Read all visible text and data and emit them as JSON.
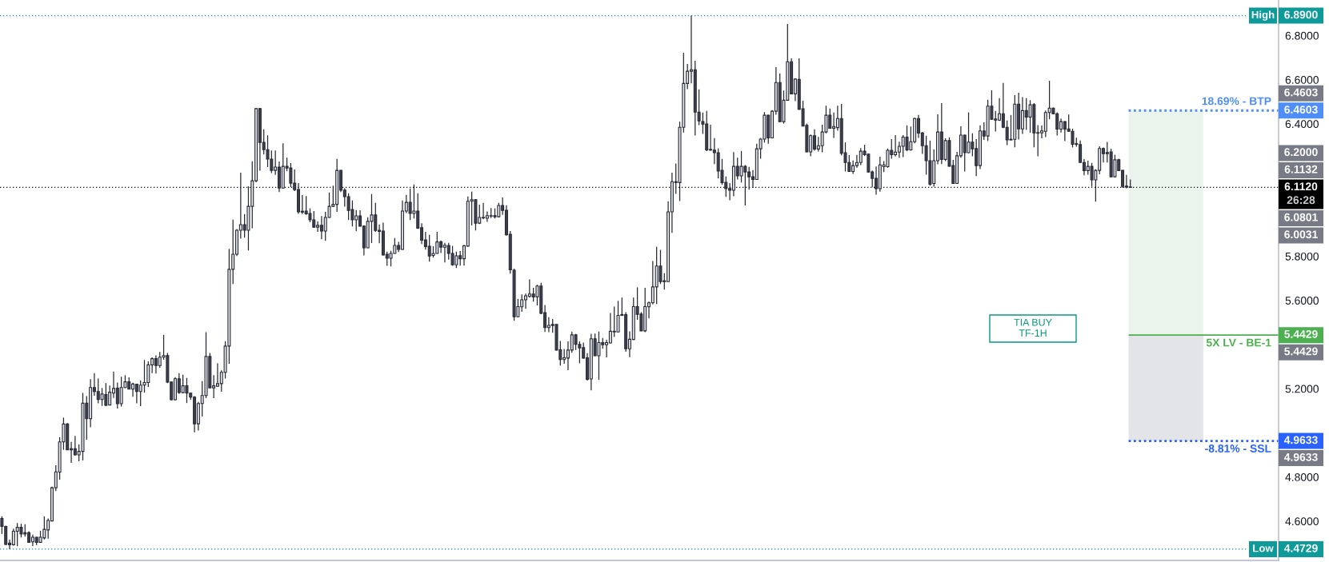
{
  "chart_data": {
    "type": "candlestick",
    "categories": [
      null,
      null,
      null,
      null,
      null,
      null,
      null,
      null,
      null,
      null,
      null,
      null,
      null,
      null,
      null,
      null,
      null,
      null,
      null,
      null,
      null,
      null,
      null,
      null,
      null,
      null,
      null,
      null,
      null,
      null,
      null,
      null,
      null,
      null,
      null,
      null,
      null,
      null,
      null,
      null,
      null,
      null,
      null,
      null,
      null,
      null,
      null,
      null,
      null,
      null,
      null,
      null,
      null,
      null,
      null,
      null,
      null,
      null,
      null,
      null,
      null,
      null,
      null,
      null,
      null,
      null,
      null,
      null,
      null,
      null,
      null,
      null,
      null,
      null,
      null,
      null,
      null,
      null,
      null,
      null,
      null,
      null,
      null,
      null,
      null,
      null,
      null,
      null,
      null,
      null,
      null,
      null,
      null,
      null,
      null,
      null,
      null,
      null,
      null,
      null,
      null,
      null,
      null,
      null,
      null,
      null,
      null,
      null,
      null,
      null,
      null,
      null,
      null,
      null,
      null,
      null,
      null,
      null,
      null,
      null,
      null,
      null,
      null,
      null,
      null,
      null,
      null,
      null,
      null,
      null,
      null,
      null,
      null,
      null,
      null,
      null,
      null,
      null,
      null,
      null,
      null,
      null,
      null,
      null,
      null,
      null,
      null,
      null,
      null,
      null,
      null,
      null,
      null,
      null,
      null,
      null,
      null,
      null,
      null,
      null,
      null,
      null,
      null,
      null,
      null,
      null,
      null,
      null,
      null,
      null,
      null,
      null,
      null,
      null,
      null,
      null,
      null,
      null,
      null,
      null,
      null,
      null,
      null,
      null,
      null,
      null,
      null,
      null,
      null,
      null,
      null,
      null,
      null,
      null,
      null,
      null,
      null,
      null,
      null,
      null,
      null,
      null,
      null,
      null,
      null,
      null,
      null,
      null,
      null,
      null,
      null,
      null,
      null,
      null,
      null,
      null,
      null,
      null,
      null,
      null,
      null,
      null,
      null,
      null,
      null,
      null,
      null,
      null,
      null,
      null,
      null,
      null,
      null,
      null,
      null,
      null,
      null,
      null,
      null,
      null,
      null,
      null,
      null,
      null,
      null,
      null,
      null,
      null,
      null,
      null,
      null,
      null,
      null,
      null,
      null,
      null,
      null,
      null,
      null,
      null,
      null,
      null,
      null,
      null,
      null,
      null,
      null,
      null,
      null,
      null,
      null,
      null,
      null,
      null,
      null,
      null,
      null,
      null,
      null,
      null,
      null,
      null,
      null,
      null,
      null,
      null,
      null,
      null,
      null,
      null,
      null,
      null,
      null,
      null,
      null,
      null,
      null,
      null,
      null,
      null,
      null,
      null,
      null,
      null,
      null,
      null,
      null,
      null,
      null,
      null,
      null,
      null,
      null,
      null,
      null,
      null,
      null,
      null,
      null,
      null,
      null,
      null,
      null,
      null,
      null,
      null,
      null,
      null,
      null,
      null,
      null,
      null
    ],
    "ohlc": [
      [
        4.612,
        4.622,
        4.542,
        4.576
      ],
      [
        4.576,
        4.58,
        4.492,
        4.495
      ],
      [
        4.501,
        4.516,
        4.4729,
        4.493
      ],
      [
        4.493,
        4.566,
        4.489,
        4.554
      ],
      [
        4.554,
        4.591,
        4.486,
        4.572
      ],
      [
        4.572,
        4.588,
        4.526,
        4.542
      ],
      [
        4.548,
        4.586,
        4.53,
        4.542
      ],
      [
        4.548,
        4.554,
        4.502,
        4.504
      ],
      [
        4.506,
        4.539,
        4.487,
        4.527
      ],
      [
        4.527,
        4.529,
        4.492,
        4.504
      ],
      [
        4.504,
        4.556,
        4.502,
        4.527
      ],
      [
        4.524,
        4.621,
        4.517,
        4.563
      ],
      [
        4.56,
        4.612,
        4.521,
        4.603
      ],
      [
        4.601,
        4.756,
        4.6,
        4.751
      ],
      [
        4.751,
        4.853,
        4.736,
        4.823
      ],
      [
        4.822,
        4.98,
        4.788,
        4.959
      ],
      [
        4.959,
        5.069,
        4.923,
        5.04
      ],
      [
        5.04,
        5.044,
        4.922,
        4.923
      ],
      [
        4.928,
        4.959,
        4.864,
        4.923
      ],
      [
        4.928,
        4.986,
        4.897,
        4.9
      ],
      [
        4.9,
        4.947,
        4.871,
        4.916
      ],
      [
        4.916,
        5.181,
        4.875,
        5.134
      ],
      [
        5.134,
        5.166,
        4.969,
        5.064
      ],
      [
        5.064,
        5.243,
        5.025,
        5.205
      ],
      [
        5.205,
        5.27,
        5.168,
        5.187
      ],
      [
        5.187,
        5.246,
        5.134,
        5.151
      ],
      [
        5.151,
        5.203,
        5.122,
        5.176
      ],
      [
        5.173,
        5.225,
        5.121,
        5.125
      ],
      [
        5.126,
        5.214,
        5.125,
        5.184
      ],
      [
        5.18,
        5.278,
        5.158,
        5.201
      ],
      [
        5.202,
        5.228,
        5.11,
        5.132
      ],
      [
        5.132,
        5.254,
        5.119,
        5.205
      ],
      [
        5.205,
        5.261,
        5.203,
        5.231
      ],
      [
        5.231,
        5.251,
        5.197,
        5.198
      ],
      [
        5.198,
        5.227,
        5.164,
        5.221
      ],
      [
        5.22,
        5.222,
        5.134,
        5.187
      ],
      [
        5.187,
        5.237,
        5.121,
        5.216
      ],
      [
        5.216,
        5.33,
        5.182,
        5.228
      ],
      [
        5.228,
        5.324,
        5.208,
        5.308
      ],
      [
        5.308,
        5.342,
        5.27,
        5.336
      ],
      [
        5.336,
        5.351,
        5.269,
        5.305
      ],
      [
        5.305,
        5.366,
        5.295,
        5.343
      ],
      [
        5.343,
        5.444,
        5.331,
        5.35
      ],
      [
        5.35,
        5.362,
        5.225,
        5.23
      ],
      [
        5.23,
        5.232,
        5.146,
        5.15
      ],
      [
        5.15,
        5.252,
        5.146,
        5.245
      ],
      [
        5.245,
        5.27,
        5.176,
        5.183
      ],
      [
        5.182,
        5.263,
        5.179,
        5.213
      ],
      [
        5.213,
        5.249,
        5.135,
        5.18
      ],
      [
        5.18,
        5.182,
        5.15,
        5.162
      ],
      [
        5.162,
        5.166,
        5.002,
        5.041
      ],
      [
        5.041,
        5.14,
        5.011,
        5.133
      ],
      [
        5.133,
        5.234,
        5.074,
        5.169
      ],
      [
        5.169,
        5.456,
        5.157,
        5.346
      ],
      [
        5.346,
        5.362,
        5.203,
        5.204
      ],
      [
        5.204,
        5.261,
        5.157,
        5.213
      ],
      [
        5.211,
        5.315,
        5.21,
        5.223
      ],
      [
        5.223,
        5.283,
        5.186,
        5.274
      ],
      [
        5.274,
        5.415,
        5.246,
        5.393
      ],
      [
        5.393,
        5.833,
        5.313,
        5.741
      ],
      [
        5.741,
        5.966,
        5.674,
        5.809
      ],
      [
        5.809,
        5.923,
        5.801,
        5.918
      ],
      [
        5.918,
        6.179,
        5.88,
        5.943
      ],
      [
        5.943,
        5.991,
        5.884,
        5.918
      ],
      [
        5.918,
        6.117,
        5.826,
        6.026
      ],
      [
        6.026,
        6.23,
        5.927,
        6.142
      ],
      [
        6.142,
        6.472,
        6.135,
        6.469
      ],
      [
        6.469,
        6.472,
        6.188,
        6.316
      ],
      [
        6.316,
        6.375,
        6.261,
        6.283
      ],
      [
        6.283,
        6.348,
        6.204,
        6.24
      ],
      [
        6.24,
        6.279,
        6.177,
        6.189
      ],
      [
        6.189,
        6.279,
        6.169,
        6.204
      ],
      [
        6.204,
        6.229,
        6.091,
        6.109
      ],
      [
        6.109,
        6.312,
        6.108,
        6.207
      ],
      [
        6.207,
        6.247,
        6.185,
        6.2
      ],
      [
        6.2,
        6.222,
        6.113,
        6.131
      ],
      [
        6.131,
        6.193,
        6.095,
        6.102
      ],
      [
        6.102,
        6.132,
        5.992,
        6.001
      ],
      [
        6.004,
        6.077,
        5.991,
        6.0
      ],
      [
        6.005,
        6.073,
        5.988,
        5.992
      ],
      [
        5.994,
        6.017,
        5.954,
        5.965
      ],
      [
        5.965,
        6.005,
        5.93,
        5.932
      ],
      [
        5.932,
        5.959,
        5.911,
        5.94
      ],
      [
        5.94,
        5.982,
        5.877,
        5.914
      ],
      [
        5.914,
        6.001,
        5.87,
        5.976
      ],
      [
        5.976,
        6.089,
        5.974,
        6.026
      ],
      [
        6.026,
        6.12,
        6.025,
        6.035
      ],
      [
        6.035,
        6.241,
        6.001,
        6.189
      ],
      [
        6.189,
        6.19,
        6.091,
        6.099
      ],
      [
        6.1,
        6.108,
        6.025,
        6.07
      ],
      [
        6.07,
        6.085,
        5.964,
        6.008
      ],
      [
        6.012,
        6.053,
        5.935,
        5.965
      ],
      [
        5.965,
        6.009,
        5.913,
        5.983
      ],
      [
        5.983,
        6.008,
        5.935,
        5.936
      ],
      [
        5.937,
        5.94,
        5.804,
        5.838
      ],
      [
        5.838,
        5.977,
        5.837,
        5.958
      ],
      [
        5.958,
        6.082,
        5.86,
        5.987
      ],
      [
        5.987,
        6.042,
        5.911,
        5.917
      ],
      [
        5.918,
        5.944,
        5.859,
        5.913
      ],
      [
        5.914,
        5.952,
        5.804,
        5.806
      ],
      [
        5.809,
        5.821,
        5.757,
        5.791
      ],
      [
        5.791,
        5.825,
        5.754,
        5.813
      ],
      [
        5.813,
        5.883,
        5.812,
        5.849
      ],
      [
        5.849,
        5.865,
        5.819,
        5.831
      ],
      [
        5.831,
        6.053,
        5.829,
        6.005
      ],
      [
        6.005,
        6.078,
        5.996,
        6.044
      ],
      [
        6.044,
        6.107,
        5.964,
        5.994
      ],
      [
        5.994,
        6.125,
        5.971,
        6.005
      ],
      [
        6.005,
        6.085,
        5.924,
        5.927
      ],
      [
        5.929,
        5.95,
        5.855,
        5.873
      ],
      [
        5.874,
        5.911,
        5.83,
        5.844
      ],
      [
        5.845,
        5.897,
        5.776,
        5.801
      ],
      [
        5.804,
        5.845,
        5.794,
        5.813
      ],
      [
        5.813,
        5.911,
        5.812,
        5.865
      ],
      [
        5.865,
        5.872,
        5.815,
        5.841
      ],
      [
        5.841,
        5.861,
        5.772,
        5.85
      ],
      [
        5.849,
        5.861,
        5.785,
        5.813
      ],
      [
        5.813,
        5.847,
        5.757,
        5.761
      ],
      [
        5.761,
        5.821,
        5.747,
        5.802
      ],
      [
        5.803,
        5.824,
        5.758,
        5.789
      ],
      [
        5.789,
        5.852,
        5.758,
        5.847
      ],
      [
        5.846,
        6.071,
        5.844,
        6.049
      ],
      [
        6.049,
        6.093,
        5.94,
        6.056
      ],
      [
        6.056,
        6.059,
        5.917,
        5.95
      ],
      [
        5.95,
        6.034,
        5.946,
        5.976
      ],
      [
        5.974,
        6.042,
        5.968,
        5.976
      ],
      [
        5.972,
        6.003,
        5.956,
        5.984
      ],
      [
        5.982,
        6.018,
        5.973,
        5.984
      ],
      [
        5.984,
        6.017,
        5.971,
        5.979
      ],
      [
        5.979,
        6.042,
        5.976,
        6.03
      ],
      [
        6.03,
        6.066,
        5.988,
        6.008
      ],
      [
        6.008,
        6.031,
        5.893,
        5.897
      ],
      [
        5.9,
        5.914,
        5.721,
        5.739
      ],
      [
        5.737,
        5.744,
        5.508,
        5.526
      ],
      [
        5.526,
        5.607,
        5.524,
        5.572
      ],
      [
        5.571,
        5.627,
        5.548,
        5.603
      ],
      [
        5.603,
        5.631,
        5.562,
        5.621
      ],
      [
        5.618,
        5.695,
        5.613,
        5.629
      ],
      [
        5.629,
        5.657,
        5.595,
        5.616
      ],
      [
        5.616,
        5.671,
        5.577,
        5.665
      ],
      [
        5.665,
        5.68,
        5.538,
        5.541
      ],
      [
        5.545,
        5.579,
        5.457,
        5.477
      ],
      [
        5.477,
        5.524,
        5.456,
        5.487
      ],
      [
        5.491,
        5.516,
        5.453,
        5.486
      ],
      [
        5.491,
        5.492,
        5.373,
        5.375
      ],
      [
        5.376,
        5.416,
        5.305,
        5.332
      ],
      [
        5.332,
        5.38,
        5.313,
        5.34
      ],
      [
        5.339,
        5.414,
        5.284,
        5.375
      ],
      [
        5.375,
        5.459,
        5.363,
        5.444
      ],
      [
        5.444,
        5.448,
        5.375,
        5.401
      ],
      [
        5.401,
        5.415,
        5.315,
        5.385
      ],
      [
        5.386,
        5.409,
        5.336,
        5.339
      ],
      [
        5.34,
        5.361,
        5.237,
        5.243
      ],
      [
        5.244,
        5.449,
        5.193,
        5.426
      ],
      [
        5.426,
        5.45,
        5.348,
        5.349
      ],
      [
        5.349,
        5.459,
        5.24,
        5.409
      ],
      [
        5.409,
        5.43,
        5.381,
        5.399
      ],
      [
        5.399,
        5.422,
        5.342,
        5.409
      ],
      [
        5.407,
        5.543,
        5.405,
        5.46
      ],
      [
        5.457,
        5.572,
        5.434,
        5.46
      ],
      [
        5.457,
        5.598,
        5.456,
        5.532
      ],
      [
        5.532,
        5.613,
        5.53,
        5.536
      ],
      [
        5.536,
        5.547,
        5.367,
        5.381
      ],
      [
        5.381,
        5.46,
        5.343,
        5.424
      ],
      [
        5.423,
        5.613,
        5.421,
        5.572
      ],
      [
        5.572,
        5.659,
        5.512,
        5.537
      ],
      [
        5.538,
        5.547,
        5.461,
        5.462
      ],
      [
        5.462,
        5.657,
        5.456,
        5.572
      ],
      [
        5.571,
        5.595,
        5.519,
        5.589
      ],
      [
        5.589,
        5.778,
        5.582,
        5.661
      ],
      [
        5.661,
        5.843,
        5.584,
        5.756
      ],
      [
        5.756,
        5.829,
        5.674,
        5.685
      ],
      [
        5.689,
        5.723,
        5.649,
        5.685
      ],
      [
        5.685,
        6.049,
        5.685,
        6.001
      ],
      [
        6.001,
        6.179,
        5.906,
        6.138
      ],
      [
        6.138,
        6.22,
        6.083,
        6.134
      ],
      [
        6.134,
        6.41,
        6.05,
        6.384
      ],
      [
        6.384,
        6.722,
        6.361,
        6.583
      ],
      [
        6.583,
        6.671,
        6.557,
        6.638
      ],
      [
        6.638,
        6.89,
        6.583,
        6.645
      ],
      [
        6.645,
        6.686,
        6.347,
        6.453
      ],
      [
        6.453,
        6.556,
        6.394,
        6.413
      ],
      [
        6.41,
        6.451,
        6.354,
        6.399
      ],
      [
        6.399,
        6.458,
        6.276,
        6.282
      ],
      [
        6.284,
        6.396,
        6.278,
        6.281
      ],
      [
        6.281,
        6.335,
        6.218,
        6.269
      ],
      [
        6.269,
        6.288,
        6.152,
        6.186
      ],
      [
        6.189,
        6.241,
        6.124,
        6.134
      ],
      [
        6.135,
        6.161,
        6.069,
        6.106
      ],
      [
        6.107,
        6.132,
        6.054,
        6.099
      ],
      [
        6.099,
        6.272,
        6.072,
        6.207
      ],
      [
        6.207,
        6.247,
        6.148,
        6.164
      ],
      [
        6.164,
        6.277,
        6.134,
        6.207
      ],
      [
        6.207,
        6.213,
        6.03,
        6.182
      ],
      [
        6.182,
        6.205,
        6.102,
        6.16
      ],
      [
        6.16,
        6.19,
        6.11,
        6.148
      ],
      [
        6.148,
        6.31,
        6.146,
        6.287
      ],
      [
        6.287,
        6.336,
        6.242,
        6.331
      ],
      [
        6.331,
        6.453,
        6.315,
        6.439
      ],
      [
        6.439,
        6.44,
        6.31,
        6.336
      ],
      [
        6.336,
        6.462,
        6.335,
        6.457
      ],
      [
        6.457,
        6.657,
        6.441,
        6.587
      ],
      [
        6.587,
        6.628,
        6.409,
        6.41
      ],
      [
        6.41,
        6.551,
        6.401,
        6.507
      ],
      [
        6.507,
        6.852,
        6.505,
        6.681
      ],
      [
        6.681,
        6.697,
        6.535,
        6.536
      ],
      [
        6.536,
        6.606,
        6.503,
        6.603
      ],
      [
        6.601,
        6.697,
        6.463,
        6.466
      ],
      [
        6.468,
        6.505,
        6.389,
        6.39
      ],
      [
        6.393,
        6.401,
        6.271,
        6.273
      ],
      [
        6.273,
        6.352,
        6.253,
        6.346
      ],
      [
        6.346,
        6.375,
        6.278,
        6.286
      ],
      [
        6.286,
        6.341,
        6.275,
        6.301
      ],
      [
        6.301,
        6.396,
        6.271,
        6.363
      ],
      [
        6.363,
        6.482,
        6.357,
        6.439
      ],
      [
        6.439,
        6.469,
        6.378,
        6.38
      ],
      [
        6.38,
        6.451,
        6.336,
        6.388
      ],
      [
        6.383,
        6.482,
        6.369,
        6.424
      ],
      [
        6.424,
        6.49,
        6.257,
        6.267
      ],
      [
        6.269,
        6.316,
        6.184,
        6.225
      ],
      [
        6.225,
        6.258,
        6.183,
        6.184
      ],
      [
        6.184,
        6.234,
        6.173,
        6.211
      ],
      [
        6.211,
        6.259,
        6.2,
        6.225
      ],
      [
        6.225,
        6.29,
        6.213,
        6.276
      ],
      [
        6.276,
        6.305,
        6.254,
        6.26
      ],
      [
        6.263,
        6.266,
        6.179,
        6.182
      ],
      [
        6.182,
        6.189,
        6.113,
        6.153
      ],
      [
        6.153,
        6.207,
        6.079,
        6.106
      ],
      [
        6.106,
        6.251,
        6.093,
        6.214
      ],
      [
        6.206,
        6.231,
        6.181,
        6.214
      ],
      [
        6.206,
        6.288,
        6.201,
        6.28
      ],
      [
        6.28,
        6.331,
        6.242,
        6.26
      ],
      [
        6.26,
        6.349,
        6.252,
        6.272
      ],
      [
        6.272,
        6.319,
        6.246,
        6.298
      ],
      [
        6.298,
        6.349,
        6.249,
        6.34
      ],
      [
        6.34,
        6.393,
        6.276,
        6.282
      ],
      [
        6.282,
        6.388,
        6.278,
        6.319
      ],
      [
        6.319,
        6.428,
        6.312,
        6.424
      ],
      [
        6.424,
        6.44,
        6.336,
        6.358
      ],
      [
        6.359,
        6.363,
        6.264,
        6.301
      ],
      [
        6.301,
        6.346,
        6.17,
        6.233
      ],
      [
        6.233,
        6.324,
        6.119,
        6.126
      ],
      [
        6.13,
        6.284,
        6.115,
        6.233
      ],
      [
        6.233,
        6.443,
        6.217,
        6.363
      ],
      [
        6.363,
        6.494,
        6.218,
        6.239
      ],
      [
        6.239,
        6.334,
        6.231,
        6.324
      ],
      [
        6.324,
        6.339,
        6.206,
        6.208
      ],
      [
        6.211,
        6.237,
        6.128,
        6.13
      ],
      [
        6.13,
        6.273,
        6.128,
        6.255
      ],
      [
        6.255,
        6.389,
        6.247,
        6.349
      ],
      [
        6.349,
        6.351,
        6.184,
        6.269
      ],
      [
        6.269,
        6.452,
        6.267,
        6.317
      ],
      [
        6.317,
        6.357,
        6.253,
        6.287
      ],
      [
        6.288,
        6.331,
        6.163,
        6.211
      ],
      [
        6.211,
        6.393,
        6.195,
        6.368
      ],
      [
        6.368,
        6.407,
        6.327,
        6.345
      ],
      [
        6.345,
        6.509,
        6.322,
        6.48
      ],
      [
        6.48,
        6.552,
        6.418,
        6.421
      ],
      [
        6.422,
        6.458,
        6.365,
        6.417
      ],
      [
        6.417,
        6.516,
        6.413,
        6.446
      ],
      [
        6.446,
        6.585,
        6.381,
        6.384
      ],
      [
        6.384,
        6.415,
        6.304,
        6.327
      ],
      [
        6.33,
        6.44,
        6.325,
        6.327
      ],
      [
        6.33,
        6.53,
        6.294,
        6.489
      ],
      [
        6.489,
        6.541,
        6.329,
        6.377
      ],
      [
        6.377,
        6.521,
        6.354,
        6.46
      ],
      [
        6.46,
        6.516,
        6.372,
        6.431
      ],
      [
        6.431,
        6.507,
        6.36,
        6.486
      ],
      [
        6.487,
        6.494,
        6.294,
        6.359
      ],
      [
        6.36,
        6.394,
        6.253,
        6.358
      ],
      [
        6.359,
        6.392,
        6.334,
        6.368
      ],
      [
        6.366,
        6.46,
        6.34,
        6.451
      ],
      [
        6.451,
        6.595,
        6.421,
        6.471
      ],
      [
        6.471,
        6.474,
        6.443,
        6.445
      ],
      [
        6.446,
        6.452,
        6.347,
        6.376
      ],
      [
        6.376,
        6.424,
        6.361,
        6.41
      ],
      [
        6.41,
        6.411,
        6.322,
        6.376
      ],
      [
        6.377,
        6.442,
        6.365,
        6.366
      ],
      [
        6.366,
        6.378,
        6.293,
        6.307
      ],
      [
        6.31,
        6.337,
        6.296,
        6.307
      ],
      [
        6.306,
        6.324,
        6.224,
        6.225
      ],
      [
        6.225,
        6.24,
        6.167,
        6.188
      ],
      [
        6.188,
        6.233,
        6.17,
        6.207
      ],
      [
        6.207,
        6.223,
        6.115,
        6.146
      ],
      [
        6.146,
        6.194,
        6.047,
        6.189
      ],
      [
        6.189,
        6.298,
        6.171,
        6.288
      ],
      [
        6.288,
        6.293,
        6.225,
        6.265
      ],
      [
        6.27,
        6.318,
        6.225,
        6.265
      ],
      [
        6.273,
        6.287,
        6.159,
        6.16
      ],
      [
        6.16,
        6.26,
        6.159,
        6.237
      ],
      [
        6.237,
        6.242,
        6.187,
        6.188
      ],
      [
        6.189,
        6.19,
        6.11,
        6.116
      ],
      [
        6.118,
        6.169,
        6.108,
        6.114
      ],
      [
        6.114,
        6.148,
        6.111,
        6.112
      ],
      null,
      null,
      null,
      null,
      null,
      null,
      null,
      null,
      null,
      null,
      null,
      null,
      null,
      null,
      null,
      null,
      null,
      null,
      null,
      null,
      null,
      null,
      null,
      null,
      null,
      null,
      null,
      null,
      null,
      null,
      null,
      null,
      null,
      null,
      null,
      null,
      null,
      null
    ],
    "ylim": [
      4.422,
      6.961
    ],
    "yticks": [
      {
        "value": 4.6,
        "label": "4.6000"
      },
      {
        "value": 4.8,
        "label": "4.8000"
      },
      {
        "value": 5.2,
        "label": "5.2000"
      },
      {
        "value": 5.6,
        "label": "5.6000"
      },
      {
        "value": 5.8,
        "label": "5.8000"
      },
      {
        "value": 6.4,
        "label": "6.4000"
      },
      {
        "value": 6.6,
        "label": "6.6000"
      },
      {
        "value": 6.8,
        "label": "6.8000"
      }
    ],
    "tick_labels": "y",
    "grid": false,
    "bands": [
      {
        "axis": "y",
        "from": 5.4429,
        "to": 6.4603,
        "color": "#ebf4ec"
      },
      {
        "axis": "y",
        "from": 4.9633,
        "to": 5.4429,
        "color": "#e3e4e7"
      }
    ],
    "ref_lines": [
      {
        "axis": "y",
        "value": 6.89,
        "label": "High",
        "color": "#0f9a9a",
        "line_style": "dotted"
      },
      {
        "axis": "y",
        "value": 6.4603,
        "label": "18.69% - BTP",
        "color": "#4f8ef7",
        "line_style": "dotted"
      },
      {
        "axis": "y",
        "value": 6.112,
        "color": "#000000",
        "line_style": "dotted"
      },
      {
        "axis": "y",
        "value": 5.4429,
        "label": "5X LV - BE-1",
        "color": "#4caf50",
        "line_style": "solid"
      },
      {
        "axis": "y",
        "value": 4.9633,
        "label": "-8.81% - SSL",
        "color": "#2962ff",
        "line_style": "dotted"
      },
      {
        "axis": "y",
        "value": 4.4729,
        "label": "Low",
        "color": "#0f9a9a",
        "line_style": "dotted"
      }
    ],
    "annotations": [
      "TIA BUY\nTF-1H",
      "26:28",
      "6.8900",
      "6.4603",
      "6.4603",
      "6.2000",
      "6.1132",
      "6.1120",
      "6.0801",
      "6.0031",
      "5.4429",
      "5.4429",
      "4.9633",
      "4.9633",
      "4.4729"
    ]
  }
}
